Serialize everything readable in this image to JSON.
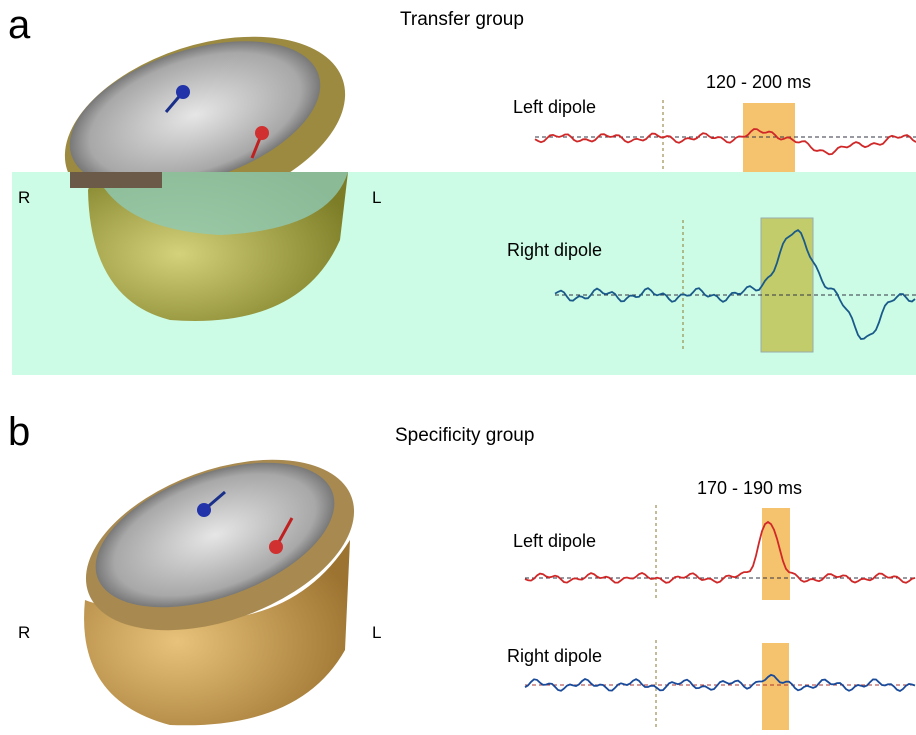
{
  "panel_a": {
    "label": "a",
    "title": "Transfer group",
    "time_window": "120 - 200 ms",
    "left_dipole": "Left dipole",
    "right_dipole": "Right dipole",
    "right_side": "R",
    "left_side": "L"
  },
  "panel_b": {
    "label": "b",
    "title": "Specificity group",
    "time_window": "170 - 190 ms",
    "left_dipole": "Left dipole",
    "right_dipole": "Right dipole",
    "right_side": "R",
    "left_side": "L"
  }
}
